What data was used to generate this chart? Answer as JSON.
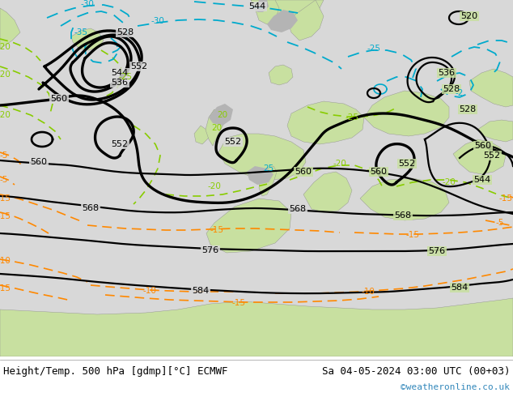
{
  "title_left": "Height/Temp. 500 hPa [gdmp][°C] ECMWF",
  "title_right": "Sa 04-05-2024 03:00 UTC (00+03)",
  "credit": "©weatheronline.co.uk",
  "bg_ocean": "#d8d8d8",
  "bg_land_green": "#c8e0a0",
  "bg_land_gray": "#b4b4b4",
  "bottom_bar_color": "#ffffff",
  "credit_color": "#3388bb",
  "title_color": "#000000",
  "title_fontsize": 9.0,
  "credit_fontsize": 8.0,
  "figsize": [
    6.34,
    4.9
  ],
  "dpi": 100,
  "black_lw": 1.6,
  "thick_lw": 2.4,
  "green_color": "#88cc00",
  "cyan_color": "#00aacc",
  "orange_color": "#ff8800",
  "label_fontsize": 7.5
}
